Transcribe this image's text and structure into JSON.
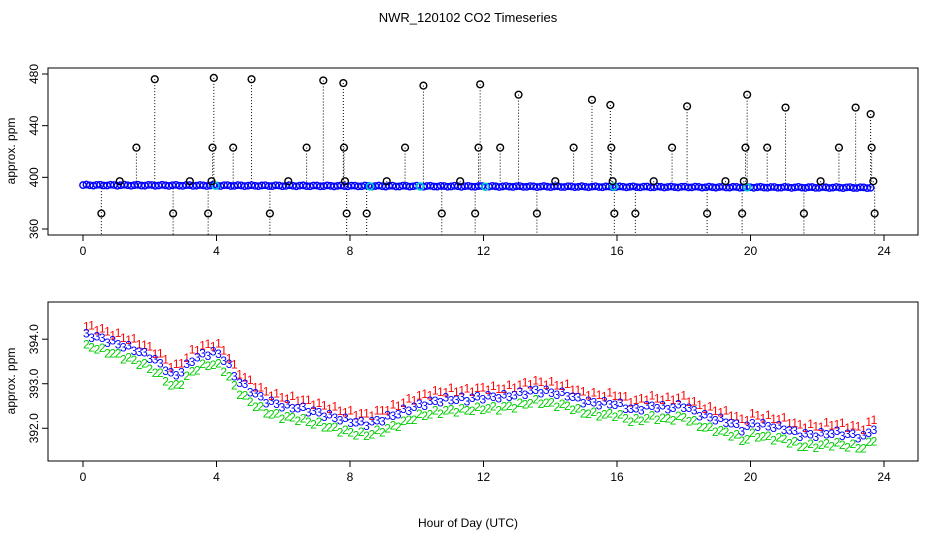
{
  "title": "NWR_120102  CO2 Timeseries",
  "xlabel": "Hour of Day (UTC)",
  "colors": {
    "ring": "#000000",
    "drop": "#000000",
    "main": "#0000ff",
    "cyan": "#00cccc",
    "s1": "#ff0000",
    "s2": "#00cc00",
    "s3": "#0000ff"
  },
  "chart_data": [
    {
      "type": "scatter",
      "ylabel": "approx. ppm",
      "xlim": [
        0,
        24
      ],
      "ylim": [
        360,
        480
      ],
      "xticks": [
        0,
        4,
        8,
        12,
        16,
        20,
        24
      ],
      "yticks": [
        360,
        400,
        440,
        480
      ],
      "baseline": {
        "x_start": 0,
        "x_end": 23.6,
        "y_start": 394.0,
        "y_end": 392.0
      },
      "cyan_markers": [
        {
          "x": 3.97,
          "y": 393.5
        },
        {
          "x": 8.6,
          "y": 393.0
        },
        {
          "x": 10.1,
          "y": 392.9
        },
        {
          "x": 12.05,
          "y": 392.7
        },
        {
          "x": 15.9,
          "y": 392.8
        },
        {
          "x": 19.9,
          "y": 392.2
        }
      ],
      "spikes": [
        {
          "x": 0.55,
          "y": 372
        },
        {
          "x": 1.1,
          "y": 397
        },
        {
          "x": 1.6,
          "y": 423
        },
        {
          "x": 2.15,
          "y": 476
        },
        {
          "x": 2.7,
          "y": 372
        },
        {
          "x": 3.2,
          "y": 397
        },
        {
          "x": 3.75,
          "y": 372
        },
        {
          "x": 3.85,
          "y": 397
        },
        {
          "x": 3.88,
          "y": 423
        },
        {
          "x": 3.92,
          "y": 477
        },
        {
          "x": 4.5,
          "y": 423
        },
        {
          "x": 5.05,
          "y": 476
        },
        {
          "x": 5.6,
          "y": 372
        },
        {
          "x": 6.15,
          "y": 397
        },
        {
          "x": 6.7,
          "y": 423
        },
        {
          "x": 7.2,
          "y": 475
        },
        {
          "x": 7.8,
          "y": 473
        },
        {
          "x": 7.82,
          "y": 423
        },
        {
          "x": 7.85,
          "y": 397
        },
        {
          "x": 7.9,
          "y": 372
        },
        {
          "x": 8.5,
          "y": 372
        },
        {
          "x": 9.1,
          "y": 397
        },
        {
          "x": 9.65,
          "y": 423
        },
        {
          "x": 10.2,
          "y": 471
        },
        {
          "x": 10.75,
          "y": 372
        },
        {
          "x": 11.3,
          "y": 397
        },
        {
          "x": 11.75,
          "y": 372
        },
        {
          "x": 11.85,
          "y": 423
        },
        {
          "x": 11.9,
          "y": 472
        },
        {
          "x": 12.5,
          "y": 423
        },
        {
          "x": 13.05,
          "y": 464
        },
        {
          "x": 13.6,
          "y": 372
        },
        {
          "x": 14.15,
          "y": 397
        },
        {
          "x": 14.7,
          "y": 423
        },
        {
          "x": 15.25,
          "y": 460
        },
        {
          "x": 15.8,
          "y": 456
        },
        {
          "x": 15.83,
          "y": 423
        },
        {
          "x": 15.87,
          "y": 397
        },
        {
          "x": 15.92,
          "y": 372
        },
        {
          "x": 16.55,
          "y": 372
        },
        {
          "x": 17.1,
          "y": 397
        },
        {
          "x": 17.65,
          "y": 423
        },
        {
          "x": 18.1,
          "y": 455
        },
        {
          "x": 18.7,
          "y": 372
        },
        {
          "x": 19.25,
          "y": 397
        },
        {
          "x": 19.75,
          "y": 372
        },
        {
          "x": 19.8,
          "y": 397
        },
        {
          "x": 19.85,
          "y": 423
        },
        {
          "x": 19.9,
          "y": 464
        },
        {
          "x": 20.5,
          "y": 423
        },
        {
          "x": 21.05,
          "y": 454
        },
        {
          "x": 21.6,
          "y": 372
        },
        {
          "x": 22.1,
          "y": 397
        },
        {
          "x": 22.65,
          "y": 423
        },
        {
          "x": 23.15,
          "y": 454
        },
        {
          "x": 23.6,
          "y": 449
        },
        {
          "x": 23.63,
          "y": 423
        },
        {
          "x": 23.68,
          "y": 397
        },
        {
          "x": 23.72,
          "y": 372
        }
      ]
    },
    {
      "type": "scatter",
      "ylabel": "approx. ppm",
      "xlim": [
        0,
        24
      ],
      "ylim": [
        391.4,
        394.7
      ],
      "xticks": [
        0,
        4,
        8,
        12,
        16,
        20,
        24
      ],
      "yticks": [
        392.0,
        393.0,
        394.0
      ],
      "ytick_labels": [
        "392.0",
        "393.0",
        "394.0"
      ],
      "series": [
        {
          "name": "1",
          "offset": 0.2
        },
        {
          "name": "2",
          "offset": -0.25
        },
        {
          "name": "3",
          "offset": 0.0
        }
      ],
      "trend": [
        {
          "x": 0.0,
          "y": 394.1
        },
        {
          "x": 0.4,
          "y": 394.05
        },
        {
          "x": 0.8,
          "y": 393.95
        },
        {
          "x": 1.2,
          "y": 393.85
        },
        {
          "x": 1.6,
          "y": 393.75
        },
        {
          "x": 2.0,
          "y": 393.6
        },
        {
          "x": 2.4,
          "y": 393.4
        },
        {
          "x": 2.7,
          "y": 393.15
        },
        {
          "x": 3.0,
          "y": 393.3
        },
        {
          "x": 3.3,
          "y": 393.55
        },
        {
          "x": 3.6,
          "y": 393.65
        },
        {
          "x": 4.0,
          "y": 393.7
        },
        {
          "x": 4.3,
          "y": 393.5
        },
        {
          "x": 4.6,
          "y": 393.1
        },
        {
          "x": 5.0,
          "y": 392.85
        },
        {
          "x": 5.5,
          "y": 392.6
        },
        {
          "x": 6.0,
          "y": 392.5
        },
        {
          "x": 6.5,
          "y": 392.45
        },
        {
          "x": 7.0,
          "y": 392.35
        },
        {
          "x": 7.5,
          "y": 392.25
        },
        {
          "x": 8.0,
          "y": 392.15
        },
        {
          "x": 8.5,
          "y": 392.1
        },
        {
          "x": 9.0,
          "y": 392.2
        },
        {
          "x": 9.5,
          "y": 392.35
        },
        {
          "x": 10.0,
          "y": 392.5
        },
        {
          "x": 10.5,
          "y": 392.6
        },
        {
          "x": 11.0,
          "y": 392.65
        },
        {
          "x": 11.5,
          "y": 392.65
        },
        {
          "x": 12.0,
          "y": 392.7
        },
        {
          "x": 12.5,
          "y": 392.7
        },
        {
          "x": 13.0,
          "y": 392.75
        },
        {
          "x": 13.5,
          "y": 392.85
        },
        {
          "x": 14.0,
          "y": 392.8
        },
        {
          "x": 14.5,
          "y": 392.75
        },
        {
          "x": 15.0,
          "y": 392.6
        },
        {
          "x": 15.5,
          "y": 392.55
        },
        {
          "x": 16.0,
          "y": 392.55
        },
        {
          "x": 16.5,
          "y": 392.4
        },
        {
          "x": 17.0,
          "y": 392.5
        },
        {
          "x": 17.5,
          "y": 392.45
        },
        {
          "x": 18.0,
          "y": 392.5
        },
        {
          "x": 18.5,
          "y": 392.3
        },
        {
          "x": 19.0,
          "y": 392.2
        },
        {
          "x": 19.5,
          "y": 392.1
        },
        {
          "x": 19.8,
          "y": 391.95
        },
        {
          "x": 20.0,
          "y": 392.1
        },
        {
          "x": 20.5,
          "y": 392.05
        },
        {
          "x": 21.0,
          "y": 392.0
        },
        {
          "x": 21.5,
          "y": 391.85
        },
        {
          "x": 22.0,
          "y": 391.85
        },
        {
          "x": 22.5,
          "y": 391.9
        },
        {
          "x": 23.0,
          "y": 391.85
        },
        {
          "x": 23.4,
          "y": 391.8
        },
        {
          "x": 23.7,
          "y": 392.0
        }
      ]
    }
  ]
}
